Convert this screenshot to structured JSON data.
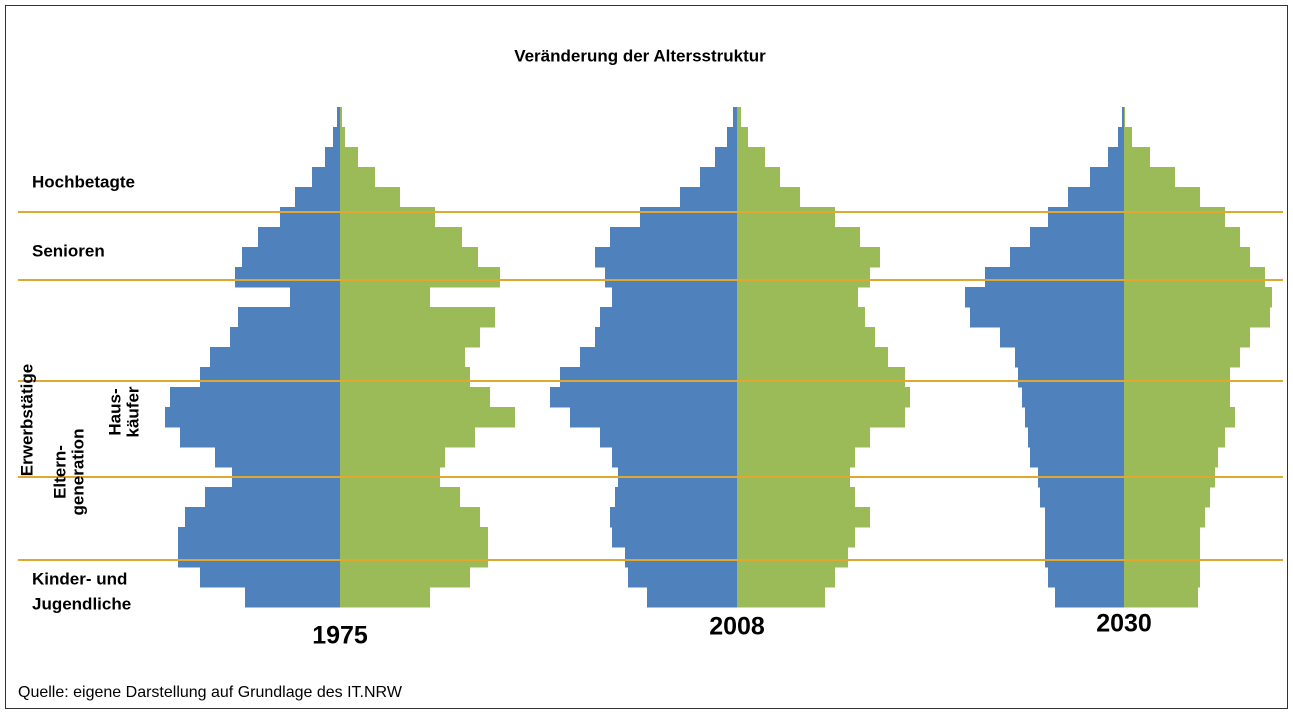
{
  "title": "Veränderung der Altersstruktur",
  "labels": {
    "hochbetagte": "Hochbetagte",
    "senioren": "Senioren",
    "erwerbstaetige": "Erwerbstätige",
    "eltern": [
      "Eltern-",
      "generation"
    ],
    "haus": [
      "Haus-",
      "käufer"
    ],
    "kinder": [
      "Kinder- und",
      "Jugendliche"
    ]
  },
  "source": "Quelle: eigene Darstellung auf Grundlage des IT.NRW",
  "chart_data": [
    {
      "type": "pyramid",
      "title": "1975",
      "xlim": [
        0,
        200
      ],
      "series": [
        {
          "color": "#4f81bd",
          "values": [
            95,
            140,
            162,
            162,
            155,
            135,
            108,
            125,
            160,
            175,
            170,
            140,
            130,
            110,
            102,
            50,
            105,
            98,
            82,
            60,
            45,
            28,
            15,
            7,
            3
          ]
        },
        {
          "color": "#9bbb59",
          "values": [
            90,
            130,
            148,
            148,
            140,
            120,
            100,
            105,
            135,
            175,
            150,
            130,
            125,
            140,
            155,
            90,
            160,
            138,
            122,
            95,
            60,
            35,
            18,
            5,
            2
          ]
        }
      ]
    },
    {
      "type": "pyramid",
      "title": "2008",
      "xlim": [
        0,
        200
      ],
      "series": [
        {
          "color": "#4f81bd",
          "values": [
            90,
            109,
            112,
            125,
            127,
            122,
            119,
            125,
            137,
            167,
            187,
            177,
            157,
            142,
            137,
            125,
            132,
            142,
            127,
            97,
            57,
            37,
            22,
            10,
            4
          ]
        },
        {
          "color": "#9bbb59",
          "values": [
            88,
            98,
            111,
            118,
            133,
            118,
            113,
            118,
            133,
            168,
            173,
            168,
            151,
            138,
            128,
            121,
            133,
            143,
            123,
            98,
            63,
            43,
            28,
            11,
            4
          ]
        }
      ]
    },
    {
      "type": "pyramid",
      "title": "2030",
      "xlim": [
        0,
        200
      ],
      "series": [
        {
          "color": "#4f81bd",
          "values": [
            69,
            76,
            79,
            79,
            79,
            84,
            86,
            94,
            96,
            99,
            102,
            106,
            109,
            124,
            154,
            159,
            139,
            114,
            94,
            76,
            56,
            34,
            16,
            6,
            2
          ]
        },
        {
          "color": "#9bbb59",
          "values": [
            74,
            76,
            76,
            76,
            81,
            86,
            91,
            94,
            101,
            111,
            106,
            106,
            116,
            126,
            146,
            148,
            141,
            126,
            116,
            101,
            76,
            51,
            26,
            8,
            1
          ]
        }
      ]
    }
  ]
}
